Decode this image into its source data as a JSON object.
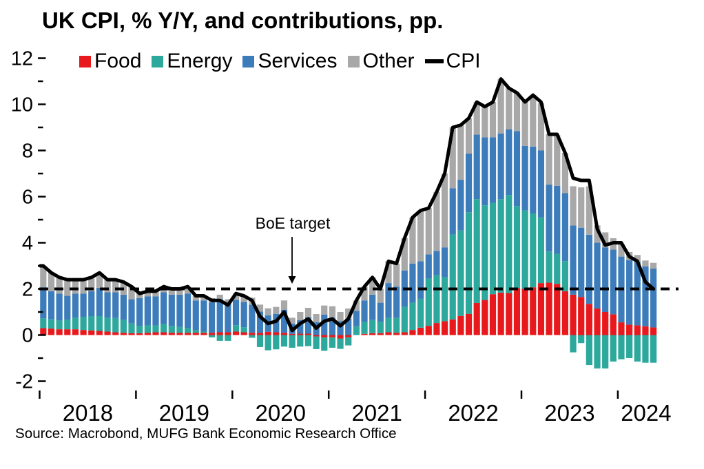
{
  "title": "UK CPI, % Y/Y, and contributions, pp.",
  "source": "Source: Macrobond, MUFG Bank Economic Research Office",
  "annotation": "BoE target",
  "chart_data": {
    "type": "bar",
    "subtype": "stacked-monthly-contributions-with-line",
    "x_start": "2018-01",
    "x_end": "2024-05",
    "x_year_labels": [
      "2018",
      "2019",
      "2020",
      "2021",
      "2022",
      "2023",
      "2024"
    ],
    "y_ticks": [
      -2,
      0,
      2,
      4,
      6,
      8,
      10,
      12
    ],
    "ylim": [
      -2.8,
      12.4
    ],
    "target_line_value": 2,
    "grid": "off",
    "legend_position": "top",
    "colors": {
      "food": "#e8191c",
      "energy": "#2ca89c",
      "services": "#3d7cba",
      "other": "#a8a8a8",
      "cpi": "#000000"
    },
    "legend": [
      {
        "name": "Food",
        "color": "#e8191c"
      },
      {
        "name": "Energy",
        "color": "#2ca89c"
      },
      {
        "name": "Services",
        "color": "#3d7cba"
      },
      {
        "name": "Other",
        "color": "#a8a8a8"
      },
      {
        "name": "CPI",
        "color": "#000000"
      }
    ],
    "series": [
      {
        "name": "Food",
        "values": [
          0.3,
          0.28,
          0.25,
          0.25,
          0.25,
          0.22,
          0.2,
          0.18,
          0.15,
          0.12,
          0.1,
          0.08,
          0.08,
          0.1,
          0.12,
          0.12,
          0.1,
          0.1,
          0.1,
          0.1,
          0.1,
          0.1,
          0.12,
          0.12,
          0.15,
          0.12,
          0.1,
          0.1,
          0.14,
          0.12,
          0.1,
          0.05,
          0.06,
          0.06,
          -0.06,
          -0.1,
          -0.1,
          -0.15,
          -0.1,
          0.0,
          0.05,
          0.08,
          0.08,
          0.12,
          0.1,
          0.12,
          0.22,
          0.32,
          0.4,
          0.52,
          0.6,
          0.68,
          0.83,
          0.92,
          1.39,
          1.52,
          1.77,
          1.84,
          1.82,
          2.04,
          2.0,
          2.07,
          2.25,
          2.27,
          2.22,
          1.9,
          1.75,
          1.65,
          1.35,
          1.15,
          1.0,
          0.9,
          0.55,
          0.45,
          0.42,
          0.38,
          0.33
        ]
      },
      {
        "name": "Energy",
        "values": [
          0.42,
          0.4,
          0.38,
          0.42,
          0.5,
          0.56,
          0.62,
          0.64,
          0.6,
          0.62,
          0.55,
          0.42,
          0.32,
          0.32,
          0.3,
          0.36,
          0.3,
          0.25,
          0.2,
          0.1,
          0.05,
          -0.1,
          -0.25,
          -0.25,
          0.28,
          0.22,
          -0.12,
          -0.52,
          -0.66,
          -0.62,
          -0.5,
          -0.55,
          -0.5,
          -0.48,
          -0.55,
          -0.58,
          -0.45,
          -0.45,
          -0.35,
          0.38,
          0.52,
          0.58,
          0.5,
          0.62,
          0.65,
          1.1,
          1.18,
          1.25,
          2.05,
          2.08,
          1.9,
          3.68,
          3.7,
          4.4,
          4.5,
          4.1,
          3.95,
          4.05,
          4.25,
          3.55,
          3.4,
          3.2,
          2.85,
          1.35,
          1.3,
          1.3,
          -0.75,
          -0.35,
          -1.3,
          -1.45,
          -1.45,
          -1.15,
          -1.05,
          -1.0,
          -1.15,
          -1.2,
          -1.2
        ]
      },
      {
        "name": "Services",
        "values": [
          1.35,
          1.22,
          1.17,
          1.03,
          1.05,
          1.02,
          1.08,
          1.23,
          1.1,
          1.11,
          1.1,
          1.05,
          1.2,
          1.26,
          1.26,
          1.37,
          1.35,
          1.4,
          1.5,
          1.3,
          1.35,
          1.32,
          1.43,
          1.28,
          1.1,
          1.1,
          1.22,
          0.92,
          0.72,
          0.8,
          1.0,
          0.45,
          0.59,
          0.72,
          0.56,
          0.88,
          0.75,
          0.6,
          0.7,
          0.67,
          0.93,
          1.09,
          0.82,
          1.51,
          1.35,
          1.58,
          1.7,
          1.63,
          1.05,
          1.05,
          1.3,
          2.0,
          2.2,
          2.55,
          2.8,
          2.95,
          2.85,
          2.85,
          2.85,
          3.25,
          2.8,
          2.9,
          2.9,
          2.9,
          2.95,
          2.95,
          3.0,
          3.0,
          3.0,
          2.85,
          2.8,
          2.8,
          2.85,
          2.8,
          2.75,
          2.6,
          2.55
        ]
      },
      {
        "name": "Other",
        "values": [
          0.93,
          0.8,
          0.7,
          0.7,
          0.6,
          0.6,
          0.6,
          0.65,
          0.55,
          0.55,
          0.55,
          0.55,
          0.2,
          0.22,
          0.22,
          0.25,
          0.25,
          0.25,
          0.3,
          0.2,
          0.2,
          0.18,
          0.2,
          0.15,
          0.27,
          0.26,
          0.3,
          0.3,
          0.3,
          0.3,
          0.4,
          0.25,
          0.35,
          0.4,
          0.35,
          0.4,
          0.5,
          0.4,
          0.45,
          0.45,
          0.6,
          0.75,
          0.6,
          0.95,
          1.0,
          1.4,
          2.0,
          2.2,
          2.0,
          2.55,
          3.2,
          2.64,
          2.37,
          1.53,
          1.41,
          1.33,
          1.53,
          2.36,
          1.78,
          1.66,
          2.0,
          2.23,
          2.05,
          2.2,
          2.2,
          1.75,
          1.7,
          1.75,
          2.1,
          0.75,
          0.65,
          0.5,
          0.55,
          0.35,
          0.3,
          0.25,
          0.25
        ]
      }
    ],
    "cpi_line": [
      3.0,
      2.7,
      2.5,
      2.4,
      2.4,
      2.4,
      2.5,
      2.7,
      2.4,
      2.4,
      2.3,
      2.1,
      1.8,
      1.9,
      1.9,
      2.1,
      2.0,
      2.0,
      2.1,
      1.7,
      1.7,
      1.5,
      1.5,
      1.3,
      1.8,
      1.7,
      1.5,
      0.8,
      0.5,
      0.6,
      1.0,
      0.2,
      0.5,
      0.7,
      0.3,
      0.6,
      0.7,
      0.4,
      0.7,
      1.5,
      2.1,
      2.5,
      2.0,
      3.2,
      3.1,
      4.2,
      5.1,
      5.4,
      5.5,
      6.2,
      7.0,
      9.0,
      9.1,
      9.4,
      10.1,
      9.9,
      10.1,
      11.1,
      10.7,
      10.5,
      10.1,
      10.4,
      10.1,
      8.7,
      8.7,
      7.9,
      6.8,
      6.7,
      6.7,
      4.6,
      3.9,
      4.0,
      4.0,
      3.4,
      3.2,
      2.3,
      2.0
    ]
  }
}
